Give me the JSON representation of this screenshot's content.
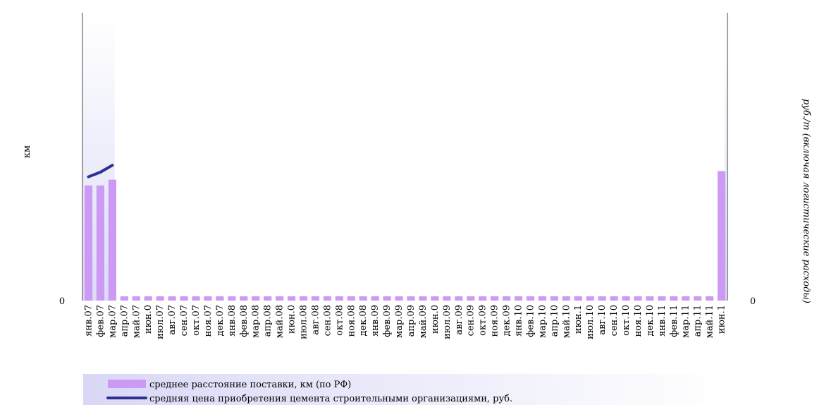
{
  "chart_data": {
    "type": "bar",
    "categories": [
      "янв.07",
      "фев.07",
      "мар.07",
      "апр.07",
      "май.07",
      "июн.0",
      "июл.07",
      "авг.07",
      "сен.07",
      "окт.07",
      "ноя.07",
      "дек.07",
      "янв.08",
      "фев.08",
      "мар.08",
      "апр.08",
      "май.08",
      "июн.0",
      "июл.08",
      "авг.08",
      "сен.08",
      "окт.08",
      "ноя.08",
      "дек.08",
      "янв.09",
      "фев.09",
      "мар.09",
      "апр.09",
      "май.09",
      "июн.0",
      "июл.09",
      "авг.09",
      "сен.09",
      "окт.09",
      "ноя.09",
      "дек.09",
      "янв.10",
      "фев.10",
      "мар.10",
      "апр.10",
      "май.10",
      "июн.1",
      "июл.10",
      "авг.10",
      "сен.10",
      "окт.10",
      "ноя.10",
      "дек.10",
      "янв.11",
      "фев.11",
      "мар.11",
      "апр.11",
      "май.11",
      "июн.1"
    ],
    "y_label": "км",
    "y2_label": "руб./т (включая логистические расходы)",
    "ylim": [
      0,
      100
    ],
    "yticks": [
      0
    ],
    "y2lim": [
      0,
      100
    ],
    "y2ticks": [
      0
    ],
    "series": [
      {
        "name": "среднее расстояние поставки, км (по РФ)",
        "color": "#cc99f5",
        "type": "bar",
        "values": [
          40,
          40,
          42,
          1.5,
          1.5,
          1.5,
          1.5,
          1.5,
          1.5,
          1.5,
          1.5,
          1.5,
          1.5,
          1.5,
          1.5,
          1.5,
          1.5,
          1.5,
          1.5,
          1.5,
          1.5,
          1.5,
          1.5,
          1.5,
          1.5,
          1.5,
          1.5,
          1.5,
          1.5,
          1.5,
          1.5,
          1.5,
          1.5,
          1.5,
          1.5,
          1.5,
          1.5,
          1.5,
          1.5,
          1.5,
          1.5,
          1.5,
          1.5,
          1.5,
          1.5,
          1.5,
          1.5,
          1.5,
          1.5,
          1.5,
          1.5,
          1.5,
          1.5,
          45
        ]
      },
      {
        "name": "средняя цена приобретения цемента строительными организациями, руб.",
        "color": "#2e3192",
        "type": "line",
        "axis": "y2",
        "values": [
          43,
          44.6,
          47,
          null,
          null,
          null,
          null,
          null,
          null,
          null,
          null,
          null,
          null,
          null,
          null,
          null,
          null,
          null,
          null,
          null,
          null,
          null,
          null,
          null,
          null,
          null,
          null,
          null,
          null,
          null,
          null,
          null,
          null,
          null,
          null,
          null,
          null,
          null,
          null,
          null,
          null,
          null,
          null,
          null,
          null,
          null,
          null,
          null,
          null,
          null,
          null,
          null,
          null,
          null
        ]
      }
    ]
  }
}
